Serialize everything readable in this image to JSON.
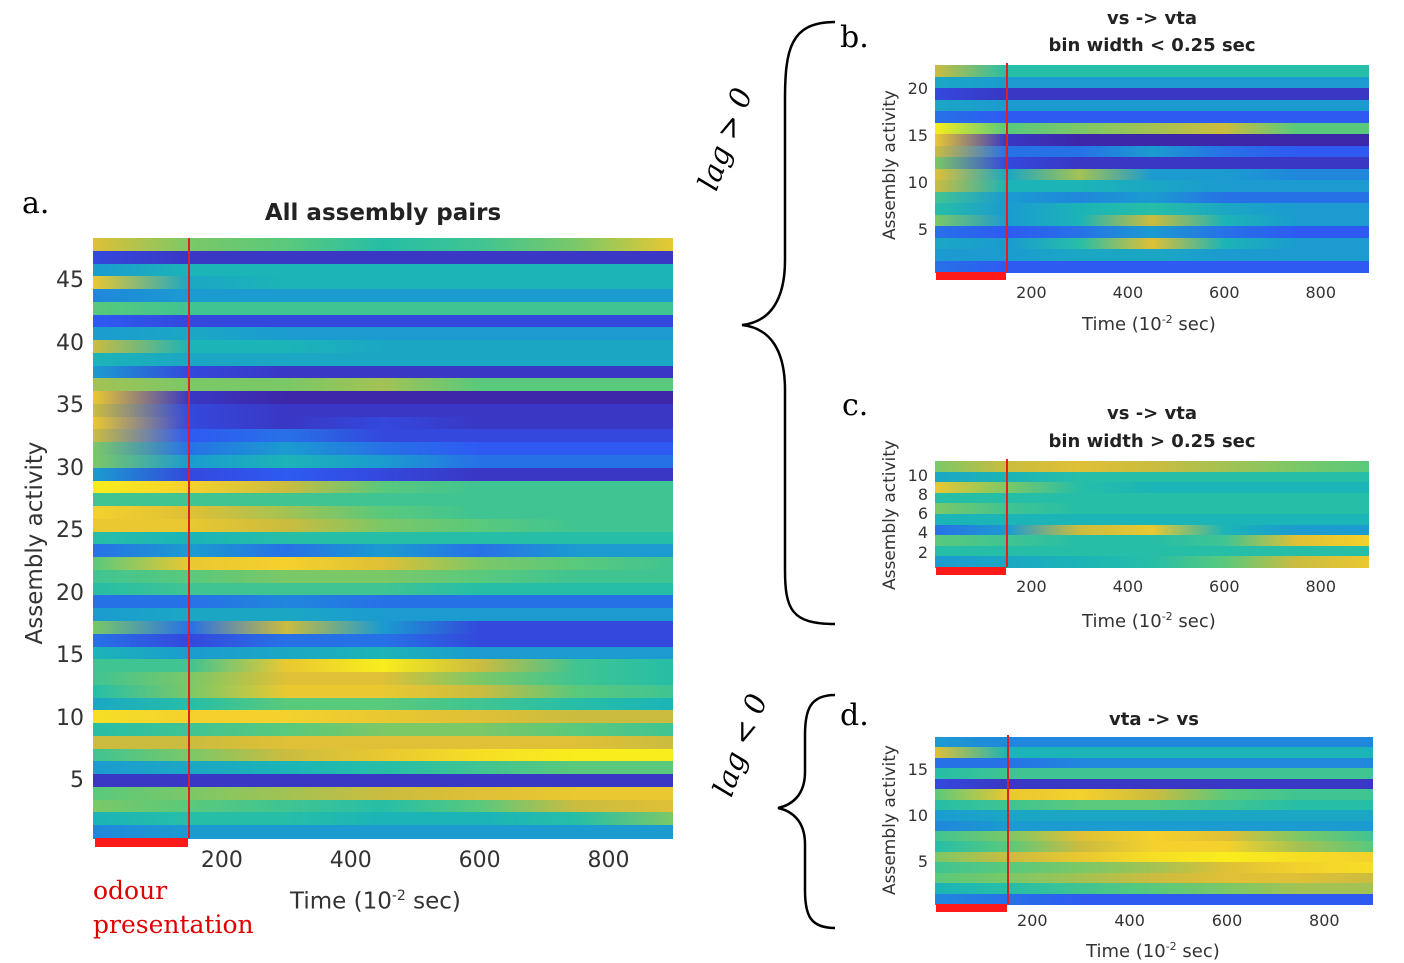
{
  "panel_a": {
    "letter": "a.",
    "title": "All assembly pairs",
    "ylabel": "Assembly activity",
    "xlabel_main": "Time (10",
    "xlabel_exp": "-2",
    "xlabel_tail": " sec)",
    "yticks": [
      "45",
      "40",
      "35",
      "30",
      "25",
      "20",
      "15",
      "10",
      "5"
    ],
    "xticks": [
      "200",
      "400",
      "600",
      "800"
    ],
    "stimulus_label_line1": "odour",
    "stimulus_label_line2": "presentation"
  },
  "panel_b": {
    "letter": "b.",
    "title_line1": "vs -> vta",
    "title_line2": "bin width < 0.25 sec",
    "ylabel": "Assembly activity",
    "xlabel_main": "Time (10",
    "xlabel_exp": "-2",
    "xlabel_tail": " sec)",
    "yticks": [
      "20",
      "15",
      "10",
      "5"
    ],
    "xticks": [
      "200",
      "400",
      "600",
      "800"
    ]
  },
  "panel_c": {
    "letter": "c.",
    "title_line1": "vs -> vta",
    "title_line2": "bin width > 0.25 sec",
    "ylabel": "Assembly activity",
    "xlabel_main": "Time (10",
    "xlabel_exp": "-2",
    "xlabel_tail": " sec)",
    "yticks": [
      "10",
      "8",
      "6",
      "4",
      "2"
    ],
    "xticks": [
      "200",
      "400",
      "600",
      "800"
    ]
  },
  "panel_d": {
    "letter": "d.",
    "title": "vta -> vs",
    "ylabel": "Assembly activity",
    "xlabel_main": "Time (10",
    "xlabel_exp": "-2",
    "xlabel_tail": " sec)",
    "yticks": [
      "15",
      "10",
      "5"
    ],
    "xticks": [
      "200",
      "400",
      "600",
      "800"
    ]
  },
  "brace_pos_label": "lag > 0",
  "brace_neg_label": "lag < 0",
  "colors": {
    "stimulus": "#e02020",
    "odour_bar": "#ff1a1a",
    "colormap": [
      "#3e26a8",
      "#2f57f4",
      "#1b97d4",
      "#1bbbb0",
      "#64cc73",
      "#d7ba39",
      "#f5d22c",
      "#f9fb15"
    ]
  },
  "chart_data": [
    {
      "type": "heatmap",
      "title": "All assembly pairs",
      "xlabel": "Time (10-2 sec)",
      "ylabel": "Assembly activity",
      "xlim": [
        0,
        900
      ],
      "ylim": [
        1,
        48
      ],
      "stimulus_end": 150,
      "rows_top_to_bottom": [
        [
          0.75,
          0.6,
          0.55,
          0.45,
          0.5,
          0.6,
          0.8
        ],
        [
          0.1,
          0.05,
          0.05,
          0.05,
          0.05,
          0.05,
          0.05
        ],
        [
          0.3,
          0.4,
          0.4,
          0.4,
          0.4,
          0.4,
          0.4
        ],
        [
          0.8,
          0.35,
          0.4,
          0.4,
          0.4,
          0.4,
          0.4
        ],
        [
          0.25,
          0.3,
          0.3,
          0.3,
          0.3,
          0.3,
          0.3
        ],
        [
          0.55,
          0.5,
          0.5,
          0.5,
          0.5,
          0.5,
          0.5
        ],
        [
          0.15,
          0.1,
          0.1,
          0.1,
          0.1,
          0.1,
          0.1
        ],
        [
          0.3,
          0.35,
          0.3,
          0.3,
          0.3,
          0.3,
          0.3
        ],
        [
          0.7,
          0.4,
          0.4,
          0.35,
          0.35,
          0.35,
          0.35
        ],
        [
          0.4,
          0.35,
          0.35,
          0.35,
          0.35,
          0.35,
          0.35
        ],
        [
          0.3,
          0.1,
          0.05,
          0.05,
          0.05,
          0.05,
          0.05
        ],
        [
          0.65,
          0.6,
          0.6,
          0.65,
          0.55,
          0.55,
          0.55
        ],
        [
          0.8,
          0.05,
          0.0,
          0.0,
          0.0,
          0.0,
          0.0
        ],
        [
          0.7,
          0.1,
          0.05,
          0.05,
          0.05,
          0.05,
          0.05
        ],
        [
          0.8,
          0.1,
          0.05,
          0.1,
          0.05,
          0.05,
          0.05
        ],
        [
          0.7,
          0.15,
          0.2,
          0.1,
          0.1,
          0.1,
          0.1
        ],
        [
          0.6,
          0.2,
          0.3,
          0.2,
          0.15,
          0.15,
          0.15
        ],
        [
          0.6,
          0.3,
          0.4,
          0.3,
          0.2,
          0.2,
          0.2
        ],
        [
          0.3,
          0.1,
          0.15,
          0.1,
          0.05,
          0.05,
          0.05
        ],
        [
          0.95,
          0.85,
          0.7,
          0.55,
          0.5,
          0.5,
          0.5
        ],
        [
          0.5,
          0.5,
          0.5,
          0.5,
          0.5,
          0.5,
          0.5
        ],
        [
          0.85,
          0.75,
          0.65,
          0.55,
          0.5,
          0.5,
          0.5
        ],
        [
          0.8,
          0.8,
          0.7,
          0.6,
          0.55,
          0.5,
          0.5
        ],
        [
          0.45,
          0.4,
          0.45,
          0.45,
          0.45,
          0.45,
          0.45
        ],
        [
          0.2,
          0.3,
          0.2,
          0.3,
          0.2,
          0.3,
          0.3
        ],
        [
          0.55,
          0.8,
          0.85,
          0.75,
          0.6,
          0.55,
          0.5
        ],
        [
          0.5,
          0.55,
          0.6,
          0.6,
          0.55,
          0.5,
          0.5
        ],
        [
          0.45,
          0.5,
          0.5,
          0.5,
          0.45,
          0.45,
          0.45
        ],
        [
          0.2,
          0.2,
          0.25,
          0.2,
          0.2,
          0.2,
          0.2
        ],
        [
          0.3,
          0.35,
          0.35,
          0.3,
          0.3,
          0.3,
          0.3
        ],
        [
          0.6,
          0.2,
          0.7,
          0.3,
          0.1,
          0.1,
          0.1
        ],
        [
          0.2,
          0.1,
          0.2,
          0.2,
          0.1,
          0.1,
          0.1
        ],
        [
          0.4,
          0.3,
          0.35,
          0.4,
          0.3,
          0.3,
          0.3
        ],
        [
          0.5,
          0.5,
          0.8,
          0.95,
          0.7,
          0.5,
          0.45
        ],
        [
          0.5,
          0.6,
          0.75,
          0.75,
          0.6,
          0.5,
          0.45
        ],
        [
          0.45,
          0.6,
          0.8,
          0.8,
          0.7,
          0.55,
          0.5
        ],
        [
          0.35,
          0.45,
          0.55,
          0.55,
          0.5,
          0.45,
          0.4
        ],
        [
          0.9,
          0.85,
          0.85,
          0.8,
          0.75,
          0.7,
          0.7
        ],
        [
          0.45,
          0.5,
          0.55,
          0.6,
          0.6,
          0.55,
          0.5
        ],
        [
          0.7,
          0.7,
          0.75,
          0.75,
          0.75,
          0.75,
          0.7
        ],
        [
          0.5,
          0.6,
          0.7,
          0.8,
          0.9,
          0.95,
          0.95
        ],
        [
          0.3,
          0.35,
          0.4,
          0.45,
          0.5,
          0.55,
          0.55
        ],
        [
          0.05,
          0.05,
          0.05,
          0.05,
          0.05,
          0.05,
          0.05
        ],
        [
          0.55,
          0.6,
          0.65,
          0.7,
          0.75,
          0.8,
          0.8
        ],
        [
          0.6,
          0.55,
          0.5,
          0.45,
          0.55,
          0.7,
          0.75
        ],
        [
          0.4,
          0.45,
          0.45,
          0.4,
          0.4,
          0.45,
          0.6
        ],
        [
          0.25,
          0.3,
          0.3,
          0.3,
          0.3,
          0.3,
          0.3
        ]
      ]
    },
    {
      "type": "heatmap",
      "title": "vs -> vta bin width < 0.25 sec",
      "xlabel": "Time (10-2 sec)",
      "ylabel": "Assembly activity",
      "xlim": [
        0,
        900
      ],
      "ylim": [
        1,
        22
      ],
      "stimulus_end": 150,
      "rows_top_to_bottom": [
        [
          0.7,
          0.45,
          0.45,
          0.45,
          0.45,
          0.45,
          0.45
        ],
        [
          0.35,
          0.3,
          0.3,
          0.3,
          0.3,
          0.3,
          0.3
        ],
        [
          0.1,
          0.05,
          0.05,
          0.05,
          0.05,
          0.05,
          0.05
        ],
        [
          0.35,
          0.3,
          0.3,
          0.3,
          0.3,
          0.3,
          0.3
        ],
        [
          0.2,
          0.15,
          0.15,
          0.15,
          0.15,
          0.15,
          0.15
        ],
        [
          0.95,
          0.55,
          0.6,
          0.65,
          0.7,
          0.55,
          0.55
        ],
        [
          0.8,
          0.05,
          0.0,
          0.0,
          0.0,
          0.0,
          0.0
        ],
        [
          0.7,
          0.2,
          0.2,
          0.3,
          0.2,
          0.15,
          0.15
        ],
        [
          0.6,
          0.1,
          0.05,
          0.05,
          0.05,
          0.05,
          0.05
        ],
        [
          0.75,
          0.35,
          0.65,
          0.3,
          0.3,
          0.25,
          0.25
        ],
        [
          0.7,
          0.4,
          0.4,
          0.35,
          0.3,
          0.3,
          0.3
        ],
        [
          0.5,
          0.3,
          0.25,
          0.3,
          0.2,
          0.2,
          0.2
        ],
        [
          0.45,
          0.3,
          0.4,
          0.45,
          0.35,
          0.3,
          0.3
        ],
        [
          0.6,
          0.3,
          0.4,
          0.7,
          0.4,
          0.3,
          0.3
        ],
        [
          0.2,
          0.15,
          0.2,
          0.3,
          0.2,
          0.15,
          0.15
        ],
        [
          0.35,
          0.3,
          0.45,
          0.75,
          0.4,
          0.3,
          0.3
        ],
        [
          0.3,
          0.3,
          0.35,
          0.35,
          0.3,
          0.3,
          0.3
        ],
        [
          0.2,
          0.15,
          0.15,
          0.15,
          0.15,
          0.15,
          0.15
        ]
      ]
    },
    {
      "type": "heatmap",
      "title": "vs -> vta bin width > 0.25 sec",
      "xlabel": "Time (10-2 sec)",
      "ylabel": "Assembly activity",
      "xlim": [
        0,
        900
      ],
      "ylim": [
        1,
        11
      ],
      "stimulus_end": 150,
      "rows_top_to_bottom": [
        [
          0.6,
          0.7,
          0.75,
          0.7,
          0.65,
          0.6,
          0.55
        ],
        [
          0.35,
          0.4,
          0.45,
          0.45,
          0.45,
          0.45,
          0.45
        ],
        [
          0.8,
          0.6,
          0.45,
          0.4,
          0.4,
          0.4,
          0.4
        ],
        [
          0.45,
          0.45,
          0.45,
          0.45,
          0.45,
          0.45,
          0.45
        ],
        [
          0.6,
          0.5,
          0.45,
          0.45,
          0.45,
          0.45,
          0.45
        ],
        [
          0.4,
          0.4,
          0.4,
          0.4,
          0.4,
          0.4,
          0.4
        ],
        [
          0.2,
          0.3,
          0.7,
          0.8,
          0.4,
          0.3,
          0.3
        ],
        [
          0.55,
          0.5,
          0.45,
          0.45,
          0.5,
          0.75,
          0.85
        ],
        [
          0.45,
          0.45,
          0.45,
          0.45,
          0.45,
          0.45,
          0.45
        ],
        [
          0.3,
          0.35,
          0.4,
          0.45,
          0.55,
          0.7,
          0.8
        ]
      ]
    },
    {
      "type": "heatmap",
      "title": "vta -> vs",
      "xlabel": "Time (10-2 sec)",
      "ylabel": "Assembly activity",
      "xlim": [
        0,
        900
      ],
      "ylim": [
        1,
        18
      ],
      "stimulus_end": 150,
      "rows_top_to_bottom": [
        [
          0.3,
          0.25,
          0.25,
          0.25,
          0.25,
          0.25,
          0.25
        ],
        [
          0.75,
          0.4,
          0.4,
          0.4,
          0.4,
          0.4,
          0.4
        ],
        [
          0.2,
          0.2,
          0.25,
          0.25,
          0.25,
          0.25,
          0.25
        ],
        [
          0.45,
          0.5,
          0.5,
          0.5,
          0.5,
          0.5,
          0.5
        ],
        [
          0.1,
          0.05,
          0.05,
          0.05,
          0.05,
          0.05,
          0.05
        ],
        [
          0.55,
          0.8,
          0.85,
          0.7,
          0.55,
          0.5,
          0.5
        ],
        [
          0.45,
          0.5,
          0.55,
          0.55,
          0.5,
          0.45,
          0.45
        ],
        [
          0.3,
          0.35,
          0.35,
          0.35,
          0.35,
          0.35,
          0.35
        ],
        [
          0.25,
          0.3,
          0.3,
          0.3,
          0.3,
          0.3,
          0.3
        ],
        [
          0.5,
          0.6,
          0.75,
          0.85,
          0.75,
          0.6,
          0.5
        ],
        [
          0.45,
          0.55,
          0.7,
          0.85,
          0.85,
          0.65,
          0.55
        ],
        [
          0.6,
          0.7,
          0.8,
          0.9,
          0.95,
          0.9,
          0.85
        ],
        [
          0.5,
          0.55,
          0.6,
          0.65,
          0.75,
          0.85,
          0.9
        ],
        [
          0.55,
          0.6,
          0.65,
          0.7,
          0.75,
          0.75,
          0.7
        ],
        [
          0.4,
          0.45,
          0.5,
          0.55,
          0.6,
          0.65,
          0.65
        ],
        [
          0.25,
          0.2,
          0.15,
          0.15,
          0.15,
          0.15,
          0.15
        ]
      ]
    }
  ]
}
